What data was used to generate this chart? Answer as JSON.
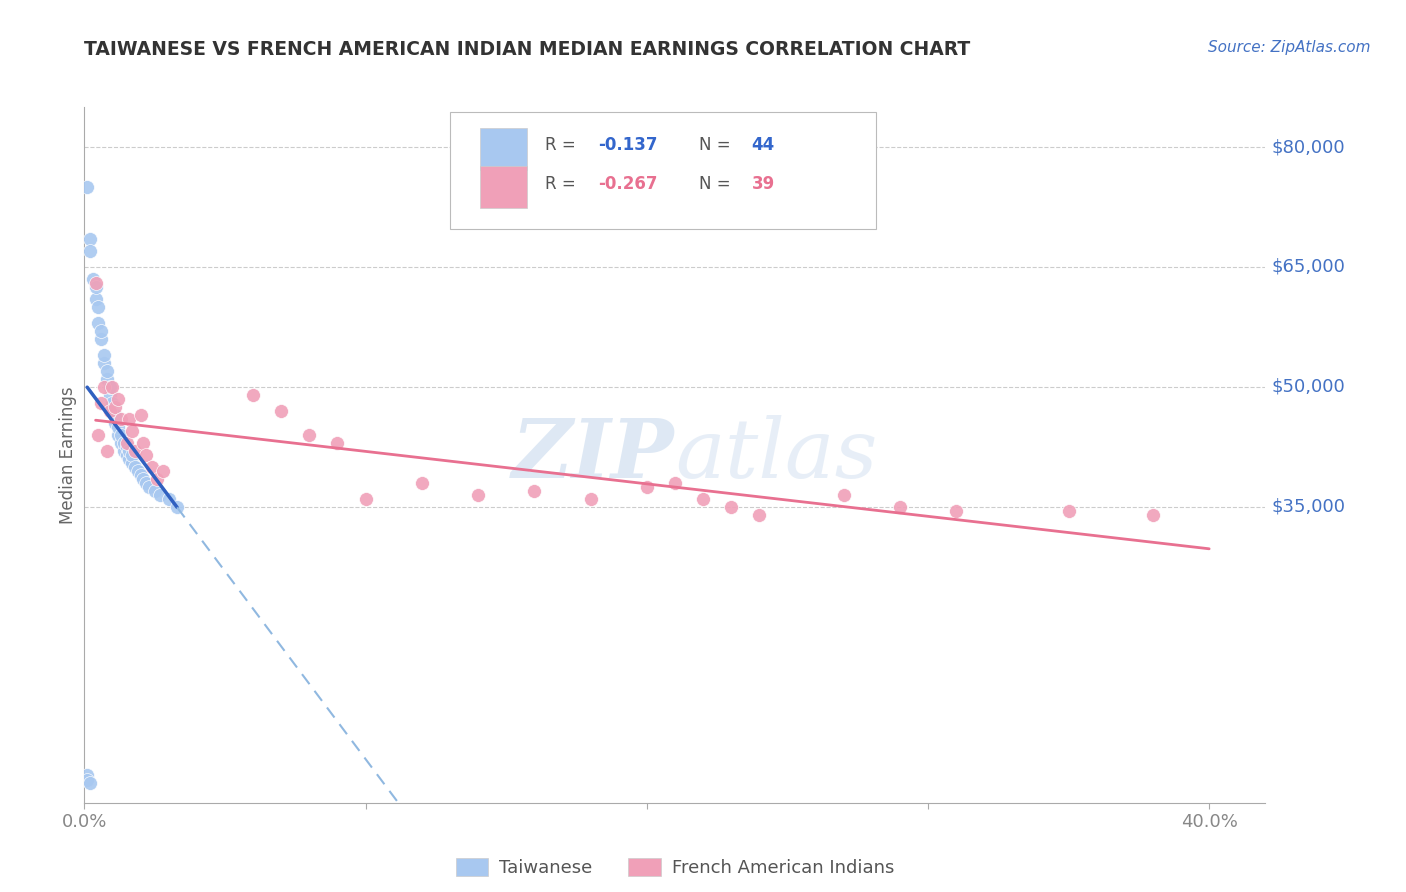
{
  "title": "TAIWANESE VS FRENCH AMERICAN INDIAN MEDIAN EARNINGS CORRELATION CHART",
  "source": "Source: ZipAtlas.com",
  "ylabel": "Median Earnings",
  "xlim": [
    0.0,
    0.42
  ],
  "ylim": [
    -2000,
    85000
  ],
  "ytick_vals": [
    35000,
    50000,
    65000,
    80000
  ],
  "ytick_labels": [
    "$35,000",
    "$50,000",
    "$65,000",
    "$80,000"
  ],
  "taiwanese_color": "#a8c8f0",
  "french_color": "#f0a0b8",
  "trend_blue_solid_color": "#3060c0",
  "trend_blue_dash_color": "#90b8e0",
  "trend_pink_color": "#e87090",
  "watermark_color": "#d0dff0",
  "grid_color": "#cccccc",
  "title_color": "#333333",
  "source_color": "#4472c4",
  "ytick_color": "#4472c4",
  "xtick_color": "#888888",
  "ylabel_color": "#666666",
  "legend_text_color": "#555555",
  "legend_blue_val_color": "#3366cc",
  "legend_pink_val_color": "#e87090",
  "taiwanese_x": [
    0.001,
    0.002,
    0.002,
    0.003,
    0.004,
    0.004,
    0.005,
    0.005,
    0.006,
    0.006,
    0.007,
    0.007,
    0.008,
    0.008,
    0.009,
    0.009,
    0.01,
    0.01,
    0.011,
    0.011,
    0.012,
    0.012,
    0.013,
    0.013,
    0.014,
    0.014,
    0.015,
    0.015,
    0.016,
    0.016,
    0.017,
    0.017,
    0.018,
    0.019,
    0.02,
    0.021,
    0.022,
    0.023,
    0.025,
    0.027,
    0.03,
    0.033,
    0.001,
    0.001,
    0.002
  ],
  "taiwanese_y": [
    75000,
    68500,
    67000,
    63500,
    61000,
    62500,
    58000,
    60000,
    56000,
    57000,
    53000,
    54000,
    51000,
    52000,
    49000,
    50000,
    47000,
    48000,
    45500,
    46500,
    44000,
    45000,
    43000,
    44000,
    42000,
    43000,
    41500,
    42500,
    41000,
    42000,
    40500,
    41500,
    40000,
    39500,
    39000,
    38500,
    38000,
    37500,
    37000,
    36500,
    36000,
    35000,
    1500,
    800,
    500
  ],
  "french_x": [
    0.004,
    0.006,
    0.007,
    0.009,
    0.01,
    0.011,
    0.012,
    0.013,
    0.015,
    0.016,
    0.017,
    0.018,
    0.02,
    0.021,
    0.022,
    0.024,
    0.026,
    0.028,
    0.06,
    0.07,
    0.08,
    0.09,
    0.1,
    0.12,
    0.14,
    0.16,
    0.18,
    0.2,
    0.21,
    0.22,
    0.23,
    0.24,
    0.27,
    0.29,
    0.31,
    0.35,
    0.38,
    0.005,
    0.008
  ],
  "french_y": [
    63000,
    48000,
    50000,
    47000,
    50000,
    47500,
    48500,
    46000,
    43000,
    46000,
    44500,
    42000,
    46500,
    43000,
    41500,
    40000,
    38500,
    39500,
    49000,
    47000,
    44000,
    43000,
    36000,
    38000,
    36500,
    37000,
    36000,
    37500,
    38000,
    36000,
    35000,
    34000,
    36500,
    35000,
    34500,
    34500,
    34000,
    44000,
    42000
  ],
  "tw_trend_x_start": 0.001,
  "tw_trend_x_solid_end": 0.033,
  "tw_trend_x_dash_end": 0.4,
  "fr_trend_x_start": 0.004,
  "fr_trend_x_end": 0.4
}
